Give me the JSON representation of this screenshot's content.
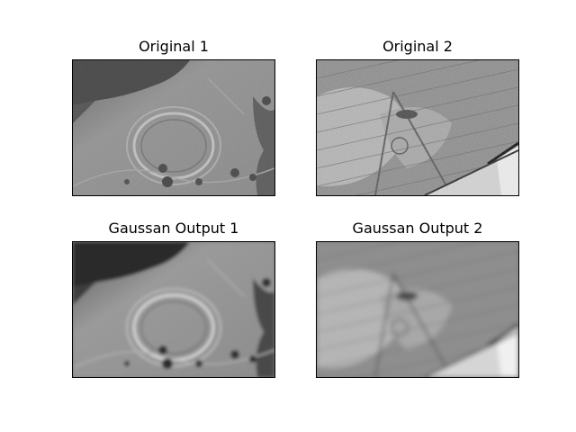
{
  "panels": [
    {
      "title": "Original 1"
    },
    {
      "title": "Original 2"
    },
    {
      "title": "Gaussan Output 1"
    },
    {
      "title": "Gaussan Output 2"
    }
  ],
  "colors": {
    "background": "#ffffff",
    "frame": "#000000",
    "image_mid_gray": "#8a8a8a"
  }
}
